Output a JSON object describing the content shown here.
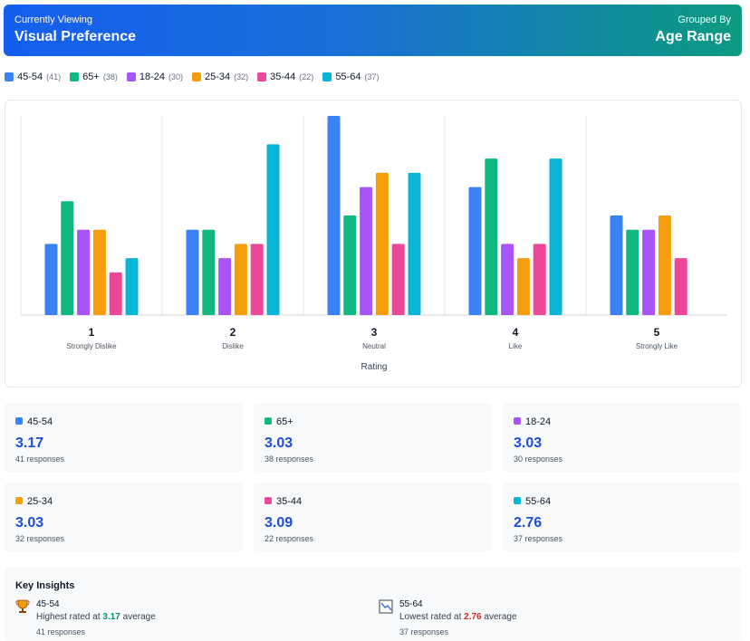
{
  "header": {
    "label": "Currently Viewing",
    "title": "Visual Preference",
    "group_label": "Grouped By",
    "group": "Age Range"
  },
  "chart_data": {
    "type": "bar",
    "categories": [
      "1",
      "2",
      "3",
      "4",
      "5"
    ],
    "category_labels": [
      "Strongly Dislike",
      "Dislike",
      "Neutral",
      "Like",
      "Strongly Like"
    ],
    "x_label": "Rating",
    "ylim": [
      0,
      14
    ],
    "series": [
      {
        "name": "45-54",
        "count_label": "(41)",
        "color": "#3b82f6",
        "values": [
          5,
          6,
          14,
          9,
          7
        ]
      },
      {
        "name": "65+",
        "count_label": "(38)",
        "color": "#10b981",
        "values": [
          8,
          6,
          7,
          11,
          6
        ]
      },
      {
        "name": "18-24",
        "count_label": "(30)",
        "color": "#a855f7",
        "values": [
          6,
          4,
          9,
          5,
          6
        ]
      },
      {
        "name": "25-34",
        "count_label": "(32)",
        "color": "#f59e0b",
        "values": [
          6,
          5,
          10,
          4,
          7
        ]
      },
      {
        "name": "35-44",
        "count_label": "(22)",
        "color": "#ec4899",
        "values": [
          3,
          5,
          5,
          5,
          4
        ]
      },
      {
        "name": "55-64",
        "count_label": "(37)",
        "color": "#06b6d4",
        "values": [
          4,
          12,
          10,
          11,
          0
        ]
      }
    ]
  },
  "cards": [
    {
      "name": "45-54",
      "average": 3.17,
      "responses": "41 responses"
    },
    {
      "name": "65+",
      "average": 3.03,
      "responses": "38 responses"
    },
    {
      "name": "18-24",
      "average": 3.03,
      "responses": "30 responses"
    },
    {
      "name": "25-34",
      "average": 3.03,
      "responses": "32 responses"
    },
    {
      "name": "35-44",
      "average": 3.09,
      "responses": "22 responses"
    },
    {
      "name": "55-64",
      "average": 2.76,
      "responses": "37 responses"
    }
  ],
  "insights": {
    "title": "Key Insights",
    "items": [
      {
        "name": "45-54",
        "text": "Highest rated at",
        "value": 3.17,
        "suffix": "average",
        "responses": "41 responses"
      },
      {
        "name": "55-64",
        "text": "Lowest rated at",
        "value": 2.76,
        "suffix": "average",
        "responses": "37 responses"
      }
    ]
  }
}
